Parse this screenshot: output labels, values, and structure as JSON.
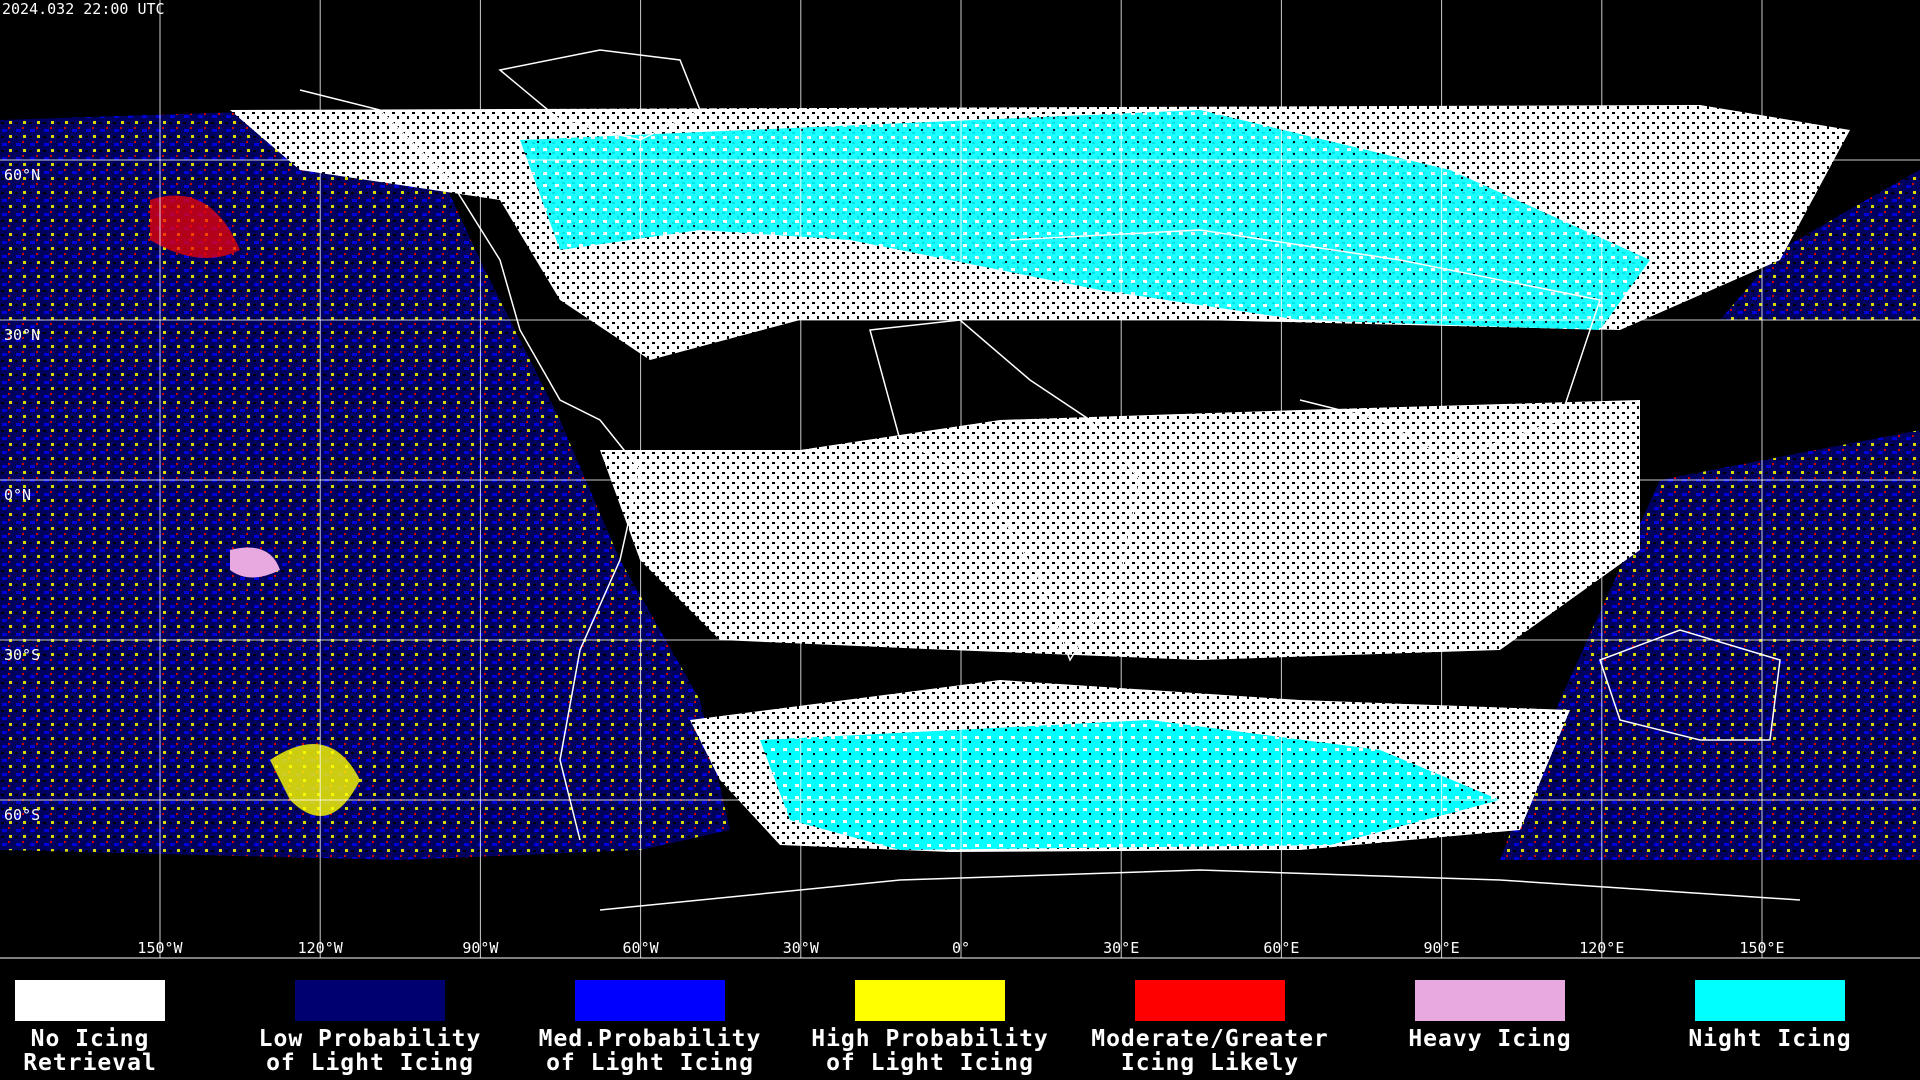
{
  "header": {
    "timestamp": "2024.032 22:00 UTC"
  },
  "map": {
    "lat_labels": [
      "60°N",
      "30°N",
      "0°N",
      "30°S",
      "60°S"
    ],
    "lon_labels": [
      "150°W",
      "120°W",
      "90°W",
      "60°W",
      "30°W",
      "0°",
      "30°E",
      "60°E",
      "90°E",
      "120°E",
      "150°E"
    ]
  },
  "legend": [
    {
      "color": "#ffffff",
      "label": [
        "No Icing",
        "Retrieval"
      ]
    },
    {
      "color": "#000070",
      "label": [
        "Low Probability",
        "of Light Icing"
      ]
    },
    {
      "color": "#0000ff",
      "label": [
        "Med.Probability",
        "of Light Icing"
      ]
    },
    {
      "color": "#ffff00",
      "label": [
        "High Probability",
        "of Light Icing"
      ]
    },
    {
      "color": "#ff0000",
      "label": [
        "Moderate/Greater",
        "Icing Likely"
      ]
    },
    {
      "color": "#e8a8e0",
      "label": [
        "Heavy Icing"
      ]
    },
    {
      "color": "#00ffff",
      "label": [
        "Night Icing"
      ]
    }
  ]
}
